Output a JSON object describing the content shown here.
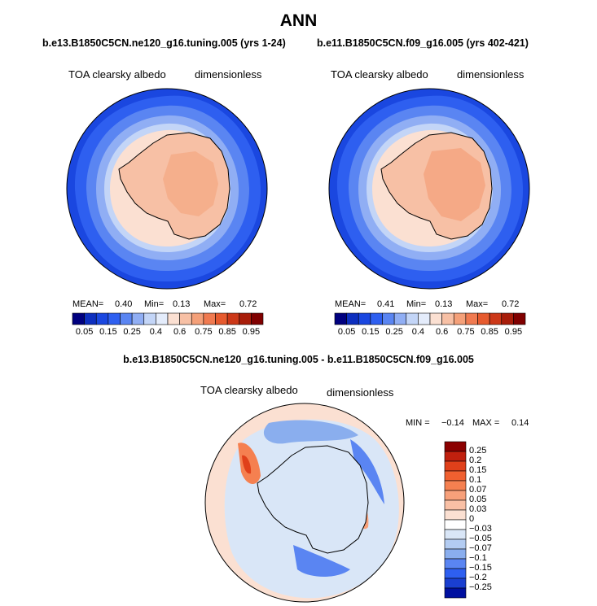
{
  "header": {
    "season": "ANN",
    "case1_title": "b.e13.B1850C5CN.ne120_g16.tuning.005 (yrs 1-24)",
    "case2_title": "b.e11.B1850C5CN.f09_g16.005 (yrs 402-421)",
    "diff_title": "b.e13.B1850C5CN.ne120_g16.tuning.005 - b.e11.B1850C5CN.f09_g16.005"
  },
  "panels": {
    "left": {
      "variable": "TOA clearsky albedo",
      "units": "dimensionless",
      "mean_label": "MEAN=",
      "mean": "0.40",
      "min_label": "Min=",
      "min": "0.13",
      "max_label": "Max=",
      "max": "0.72"
    },
    "right": {
      "variable": "TOA clearsky albedo",
      "units": "dimensionless",
      "mean_label": "MEAN=",
      "mean": "0.41",
      "min_label": "Min=",
      "min": "0.13",
      "max_label": "Max=",
      "max": "0.72"
    },
    "diff": {
      "variable": "TOA clearsky albedo",
      "units": "dimensionless",
      "min_label": "MIN =",
      "min": "−0.14",
      "max_label": "MAX =",
      "max": "0.14"
    }
  },
  "chart_data": [
    {
      "type": "heatmap",
      "title": "b.e13.B1850C5CN.ne120_g16.tuning.005 (yrs 1-24)",
      "variable": "TOA clearsky albedo",
      "units": "dimensionless",
      "projection": "south polar stereographic",
      "mean": 0.4,
      "min": 0.13,
      "max": 0.72,
      "levels": [
        0.05,
        0.15,
        0.25,
        0.4,
        0.6,
        0.75,
        0.85,
        0.95
      ],
      "colorbar_labels": [
        "0.05",
        "0.15",
        "0.25",
        "0.4",
        "0.6",
        "0.75",
        "0.85",
        "0.95"
      ],
      "colors": [
        "#00007f",
        "#0d2fbf",
        "#1a47e0",
        "#2e5ff0",
        "#5a85f2",
        "#90aef4",
        "#c3d5f7",
        "#e4ecfb",
        "#fbe0d2",
        "#f7c0a5",
        "#f4a079",
        "#f07a50",
        "#e65a2e",
        "#cc3818",
        "#a81d0a",
        "#800000"
      ]
    },
    {
      "type": "heatmap",
      "title": "b.e11.B1850C5CN.f09_g16.005 (yrs 402-421)",
      "variable": "TOA clearsky albedo",
      "units": "dimensionless",
      "projection": "south polar stereographic",
      "mean": 0.41,
      "min": 0.13,
      "max": 0.72,
      "levels": [
        0.05,
        0.15,
        0.25,
        0.4,
        0.6,
        0.75,
        0.85,
        0.95
      ],
      "colorbar_labels": [
        "0.05",
        "0.15",
        "0.25",
        "0.4",
        "0.6",
        "0.75",
        "0.85",
        "0.95"
      ],
      "colors": [
        "#00007f",
        "#0d2fbf",
        "#1a47e0",
        "#2e5ff0",
        "#5a85f2",
        "#90aef4",
        "#c3d5f7",
        "#e4ecfb",
        "#fbe0d2",
        "#f7c0a5",
        "#f4a079",
        "#f07a50",
        "#e65a2e",
        "#cc3818",
        "#a81d0a",
        "#800000"
      ]
    },
    {
      "type": "heatmap",
      "title": "b.e13.B1850C5CN.ne120_g16.tuning.005 - b.e11.B1850C5CN.f09_g16.005",
      "variable": "TOA clearsky albedo",
      "units": "dimensionless",
      "projection": "south polar stereographic",
      "min": -0.14,
      "max": 0.14,
      "colorbar_labels": [
        "0.25",
        "0.2",
        "0.15",
        "0.1",
        "0.07",
        "0.05",
        "0.03",
        "0",
        "−0.03",
        "−0.05",
        "−0.07",
        "−0.1",
        "−0.15",
        "−0.2",
        "−0.25"
      ],
      "colors": [
        "#8b0000",
        "#c0200e",
        "#e0401a",
        "#f06030",
        "#f58050",
        "#f7a07a",
        "#f9c0a5",
        "#fbe0d2",
        "#ffffff",
        "#d9e6f7",
        "#b3ccf2",
        "#8aaeee",
        "#5a85f2",
        "#2e5ff0",
        "#1a3fd0",
        "#0010a0"
      ]
    }
  ]
}
